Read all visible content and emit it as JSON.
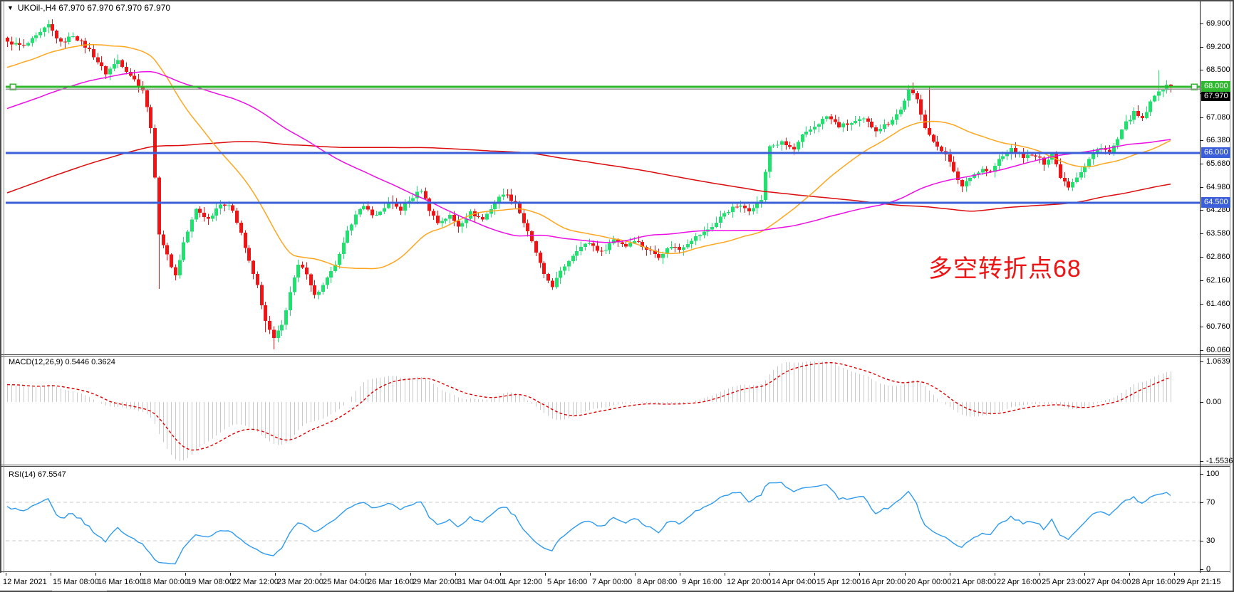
{
  "window": {
    "dropdown_icon": "▼",
    "title": "UKOil-,H4 67.970 67.970 67.970 67.970"
  },
  "colors": {
    "bull": "#1ee16e",
    "bear": "#f21414",
    "ma_fast": "#ffa51e",
    "ma_mid": "#ec0fe4",
    "ma_slow": "#dd0c0c",
    "hline_green": "#2eb82e",
    "hline_blue": "#3a5fd9",
    "price_line": "#9a9a9a",
    "price_box_bg": "#000000",
    "macd_hist": "#c9c9c9",
    "macd_signal": "#e00000",
    "rsi_line": "#2e9bef",
    "rsi_level": "#c9c9c9",
    "annotation": "#ee1414"
  },
  "main_chart": {
    "annotation": {
      "text": "多空转折点68"
    },
    "y_ticks": [
      "69.900",
      "69.200",
      "68.500",
      "67.800",
      "67.080",
      "66.380",
      "65.680",
      "64.980",
      "64.280",
      "63.580",
      "62.860",
      "62.160",
      "61.460",
      "60.760",
      "60.060"
    ],
    "hlines": [
      {
        "price": 68.0,
        "label": "68.000",
        "style": "green",
        "selected": true
      },
      {
        "price": 66.0,
        "label": "66.000",
        "style": "blue",
        "selected": false
      },
      {
        "price": 64.5,
        "label": "64.500",
        "style": "blue",
        "selected": false
      }
    ],
    "current_price": {
      "value": 67.97,
      "label": "67.970"
    }
  },
  "macd_panel": {
    "label": "MACD(12,26,9) 0.5446 0.3624",
    "value": 0.5446,
    "signal_value": 0.3624,
    "y_ticks": [
      {
        "label": "1.0639",
        "value": 1.0639
      },
      {
        "label": "0.00",
        "value": 0
      },
      {
        "label": "-1.5536",
        "value": -1.5536
      }
    ]
  },
  "rsi_panel": {
    "label": "RSI(14) 67.5547",
    "value": 67.5547,
    "levels": [
      70,
      30
    ],
    "y_ticks": [
      {
        "label": "100",
        "value": 100
      },
      {
        "label": "70",
        "value": 70
      },
      {
        "label": "30",
        "value": 30
      },
      {
        "label": "0",
        "value": 0
      }
    ]
  },
  "time_axis": [
    "12 Mar 2021",
    "15 Mar 08:00",
    "16 Mar 16:00",
    "18 Mar 00:00",
    "19 Mar 08:00",
    "22 Mar 12:00",
    "23 Mar 20:00",
    "25 Mar 04:00",
    "26 Mar 16:00",
    "29 Mar 20:00",
    "31 Mar 04:00",
    "1 Apr 12:00",
    "5 Apr 16:00",
    "7 Apr 00:00",
    "8 Apr 08:00",
    "9 Apr 16:00",
    "12 Apr 20:00",
    "14 Apr 04:00",
    "15 Apr 12:00",
    "16 Apr 20:00",
    "20 Apr 00:00",
    "21 Apr 08:00",
    "22 Apr 16:00",
    "25 Apr 23:00",
    "27 Apr 04:00",
    "28 Apr 16:00",
    "29 Apr 21:15"
  ],
  "chart_data": {
    "type": "candlestick",
    "symbol": "UKOil-",
    "timeframe": "H4",
    "bars_total": 285,
    "last_quote": {
      "open": 67.97,
      "high": 67.97,
      "low": 67.97,
      "close": 67.97
    },
    "price_range_top": 70.565,
    "price_range_bottom": 59.91,
    "close_anchors": [
      [
        0,
        69.35
      ],
      [
        4,
        69.2
      ],
      [
        8,
        69.6
      ],
      [
        10,
        69.85
      ],
      [
        13,
        69.3
      ],
      [
        16,
        69.55
      ],
      [
        20,
        69.1
      ],
      [
        24,
        68.4
      ],
      [
        27,
        68.8
      ],
      [
        31,
        68.2
      ],
      [
        33,
        67.9
      ],
      [
        35,
        66.8
      ],
      [
        37,
        63.6
      ],
      [
        39,
        62.9
      ],
      [
        41,
        62.3
      ],
      [
        43,
        63.3
      ],
      [
        46,
        64.3
      ],
      [
        49,
        64.0
      ],
      [
        52,
        64.5
      ],
      [
        55,
        64.3
      ],
      [
        57,
        63.6
      ],
      [
        59,
        62.7
      ],
      [
        61,
        62.0
      ],
      [
        63,
        60.9
      ],
      [
        65,
        60.4
      ],
      [
        67,
        60.8
      ],
      [
        69,
        61.8
      ],
      [
        71,
        62.6
      ],
      [
        73,
        62.4
      ],
      [
        75,
        61.7
      ],
      [
        77,
        62.0
      ],
      [
        79,
        62.4
      ],
      [
        81,
        62.9
      ],
      [
        83,
        63.6
      ],
      [
        85,
        64.2
      ],
      [
        87,
        64.35
      ],
      [
        90,
        64.1
      ],
      [
        93,
        64.5
      ],
      [
        96,
        64.3
      ],
      [
        98,
        64.55
      ],
      [
        101,
        64.9
      ],
      [
        103,
        64.3
      ],
      [
        105,
        63.9
      ],
      [
        108,
        64.1
      ],
      [
        110,
        63.8
      ],
      [
        113,
        64.2
      ],
      [
        116,
        64.0
      ],
      [
        119,
        64.5
      ],
      [
        121,
        64.8
      ],
      [
        124,
        64.5
      ],
      [
        127,
        63.6
      ],
      [
        129,
        63.0
      ],
      [
        131,
        62.3
      ],
      [
        133,
        62.0
      ],
      [
        136,
        62.6
      ],
      [
        139,
        63.1
      ],
      [
        142,
        63.3
      ],
      [
        145,
        63.0
      ],
      [
        148,
        63.4
      ],
      [
        151,
        63.2
      ],
      [
        153,
        63.4
      ],
      [
        156,
        63.1
      ],
      [
        159,
        62.9
      ],
      [
        162,
        63.2
      ],
      [
        164,
        63.1
      ],
      [
        167,
        63.4
      ],
      [
        170,
        63.6
      ],
      [
        173,
        63.9
      ],
      [
        175,
        64.2
      ],
      [
        178,
        64.4
      ],
      [
        181,
        64.3
      ],
      [
        184,
        64.6
      ],
      [
        186,
        66.2
      ],
      [
        189,
        66.3
      ],
      [
        192,
        66.1
      ],
      [
        194,
        66.5
      ],
      [
        197,
        66.8
      ],
      [
        200,
        67.1
      ],
      [
        203,
        66.8
      ],
      [
        206,
        66.9
      ],
      [
        209,
        67.0
      ],
      [
        212,
        66.7
      ],
      [
        215,
        66.9
      ],
      [
        218,
        67.3
      ],
      [
        220,
        67.9
      ],
      [
        222,
        67.6
      ],
      [
        224,
        66.8
      ],
      [
        226,
        66.3
      ],
      [
        229,
        66.0
      ],
      [
        231,
        65.4
      ],
      [
        233,
        65.0
      ],
      [
        235,
        65.3
      ],
      [
        238,
        65.5
      ],
      [
        240,
        65.4
      ],
      [
        242,
        65.8
      ],
      [
        245,
        66.1
      ],
      [
        248,
        65.9
      ],
      [
        251,
        65.9
      ],
      [
        253,
        65.7
      ],
      [
        255,
        66.0
      ],
      [
        257,
        65.3
      ],
      [
        259,
        65.0
      ],
      [
        261,
        65.3
      ],
      [
        263,
        65.6
      ],
      [
        265,
        66.0
      ],
      [
        267,
        66.2
      ],
      [
        269,
        66.0
      ],
      [
        271,
        66.4
      ],
      [
        273,
        66.9
      ],
      [
        275,
        67.2
      ],
      [
        277,
        67.0
      ],
      [
        279,
        67.5
      ],
      [
        281,
        67.9
      ],
      [
        283,
        68.0
      ],
      [
        284,
        67.97
      ]
    ],
    "wick_overrides": {
      "10": {
        "high": 70.0
      },
      "37": {
        "low": 61.9
      },
      "63": {
        "low": 60.6
      },
      "65": {
        "low": 60.08
      },
      "66": {
        "low": 60.35
      },
      "220": {
        "high": 68.05
      },
      "225": {
        "high": 68.0
      },
      "281": {
        "high": 68.5
      }
    },
    "pre_history": {
      "bars": 200,
      "from": 60.2,
      "to": 69.3
    },
    "moving_averages": [
      {
        "name": "ma-fast",
        "period": 34,
        "color_key": "ma_fast"
      },
      {
        "name": "ma-mid",
        "period": 89,
        "color_key": "ma_mid"
      },
      {
        "name": "ma-slow",
        "period": 200,
        "color_key": "ma_slow"
      }
    ],
    "indicators": {
      "macd": {
        "fast": 12,
        "slow": 26,
        "signal": 9,
        "display_max": 1.0639,
        "display_min": -1.5536
      },
      "rsi": {
        "period": 14,
        "overbought": 70,
        "oversold": 30
      }
    }
  }
}
